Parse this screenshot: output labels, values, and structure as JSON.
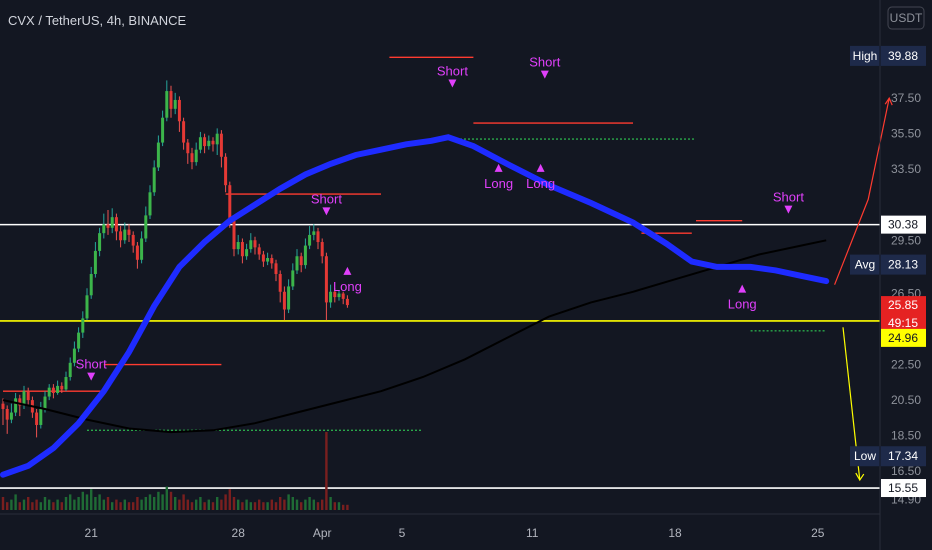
{
  "header": {
    "title": "CVX / TetherUS, 4h, BINANCE",
    "currency_label": "USDT"
  },
  "chart_data": {
    "type": "candlestick",
    "symbol": "CVX / TetherUS",
    "interval": "4h",
    "exchange": "BINANCE",
    "x_ticks": [
      "21",
      "28",
      "Apr",
      "5",
      "11",
      "18",
      "25"
    ],
    "y_ticks": [
      37.5,
      35.5,
      33.5,
      29.5,
      26.5,
      22.5,
      20.5,
      18.5,
      16.5,
      14.9
    ],
    "y_tick_labels": [
      "37.50",
      "35.50",
      "33.50",
      "29.50",
      "26.50",
      "22.50",
      "20.50",
      "18.50",
      "16.50",
      "14.90"
    ],
    "ylim": [
      14.2,
      41.0
    ],
    "candles": [
      [
        20.3,
        20.0,
        20.6,
        19.1
      ],
      [
        20.0,
        19.4,
        20.2,
        18.6
      ],
      [
        19.4,
        19.8,
        20.3,
        19.2
      ],
      [
        19.8,
        20.6,
        20.9,
        19.6
      ],
      [
        20.6,
        20.2,
        20.8,
        19.6
      ],
      [
        20.2,
        21.0,
        21.3,
        20.0
      ],
      [
        21.0,
        20.5,
        21.2,
        20.2
      ],
      [
        20.5,
        19.8,
        20.7,
        19.5
      ],
      [
        19.8,
        19.1,
        20.0,
        18.4
      ],
      [
        19.1,
        20.0,
        20.4,
        18.9
      ],
      [
        20.0,
        20.7,
        21.0,
        19.8
      ],
      [
        20.7,
        21.2,
        21.4,
        20.5
      ],
      [
        21.2,
        20.9,
        21.4,
        20.6
      ],
      [
        20.9,
        21.3,
        21.6,
        20.8
      ],
      [
        21.3,
        21.1,
        21.5,
        20.9
      ],
      [
        21.1,
        21.8,
        22.1,
        21.0
      ],
      [
        21.8,
        22.6,
        22.9,
        21.6
      ],
      [
        22.6,
        23.4,
        23.8,
        22.4
      ],
      [
        23.4,
        24.3,
        24.6,
        23.2
      ],
      [
        24.3,
        25.1,
        25.5,
        24.0
      ],
      [
        25.1,
        26.4,
        26.8,
        25.0
      ],
      [
        26.4,
        27.6,
        28.0,
        26.2
      ],
      [
        27.6,
        28.9,
        29.4,
        27.4
      ],
      [
        28.9,
        29.9,
        30.2,
        28.6
      ],
      [
        29.9,
        30.4,
        31.0,
        29.6
      ],
      [
        30.4,
        30.2,
        31.2,
        29.8
      ],
      [
        30.2,
        30.8,
        31.3,
        29.9
      ],
      [
        30.8,
        30.0,
        31.0,
        29.5
      ],
      [
        30.0,
        29.5,
        30.3,
        29.1
      ],
      [
        29.5,
        30.1,
        30.5,
        29.3
      ],
      [
        30.1,
        29.8,
        30.4,
        29.4
      ],
      [
        29.8,
        29.2,
        30.0,
        28.8
      ],
      [
        29.2,
        28.4,
        29.4,
        27.9
      ],
      [
        28.4,
        29.6,
        30.0,
        28.2
      ],
      [
        29.6,
        30.9,
        31.4,
        29.4
      ],
      [
        30.9,
        32.2,
        32.6,
        30.7
      ],
      [
        32.2,
        33.6,
        34.0,
        32.0
      ],
      [
        33.6,
        35.0,
        35.4,
        33.4
      ],
      [
        35.0,
        36.4,
        36.8,
        34.8
      ],
      [
        36.4,
        37.9,
        38.5,
        36.2
      ],
      [
        37.9,
        36.9,
        38.2,
        36.4
      ],
      [
        36.9,
        37.4,
        37.8,
        36.6
      ],
      [
        37.4,
        36.2,
        37.6,
        35.6
      ],
      [
        36.2,
        35.0,
        36.4,
        34.6
      ],
      [
        35.0,
        34.4,
        35.2,
        33.8
      ],
      [
        34.4,
        33.9,
        34.7,
        33.5
      ],
      [
        33.9,
        34.6,
        35.0,
        33.7
      ],
      [
        34.6,
        35.3,
        35.6,
        34.4
      ],
      [
        35.3,
        34.8,
        35.5,
        34.4
      ],
      [
        34.8,
        35.1,
        35.4,
        34.6
      ],
      [
        35.1,
        34.9,
        35.3,
        34.5
      ],
      [
        34.9,
        35.5,
        35.8,
        34.3
      ],
      [
        35.5,
        34.2,
        35.7,
        33.6
      ],
      [
        34.2,
        32.6,
        34.4,
        32.2
      ],
      [
        32.6,
        30.6,
        32.8,
        30.2
      ],
      [
        30.6,
        29.0,
        30.8,
        28.6
      ],
      [
        29.0,
        29.4,
        29.8,
        28.7
      ],
      [
        29.4,
        28.6,
        29.6,
        28.2
      ],
      [
        28.6,
        29.0,
        29.3,
        28.4
      ],
      [
        29.0,
        29.5,
        29.9,
        28.8
      ],
      [
        29.5,
        29.1,
        29.7,
        28.7
      ],
      [
        29.1,
        28.7,
        29.3,
        28.4
      ],
      [
        28.7,
        28.3,
        28.9,
        28.0
      ],
      [
        28.3,
        28.5,
        28.8,
        28.1
      ],
      [
        28.5,
        28.2,
        28.7,
        27.9
      ],
      [
        28.2,
        27.6,
        28.4,
        27.2
      ],
      [
        27.6,
        26.6,
        27.8,
        26.0
      ],
      [
        26.6,
        25.6,
        26.9,
        25.0
      ],
      [
        25.6,
        26.9,
        27.3,
        25.4
      ],
      [
        26.9,
        27.8,
        28.2,
        26.7
      ],
      [
        27.8,
        28.6,
        29.0,
        27.6
      ],
      [
        28.6,
        28.1,
        28.8,
        27.7
      ],
      [
        28.1,
        29.2,
        29.6,
        27.9
      ],
      [
        29.2,
        29.8,
        30.3,
        29.0
      ],
      [
        29.8,
        30.0,
        30.4,
        29.5
      ],
      [
        30.0,
        29.4,
        30.2,
        29.0
      ],
      [
        29.4,
        28.6,
        29.6,
        28.2
      ],
      [
        28.6,
        26.0,
        28.8,
        25.0
      ],
      [
        26.0,
        26.6,
        27.0,
        25.7
      ],
      [
        26.6,
        26.3,
        26.8,
        26.0
      ],
      [
        26.3,
        26.5,
        26.7,
        26.1
      ],
      [
        26.5,
        26.2,
        26.6,
        25.9
      ],
      [
        26.2,
        25.85,
        26.4,
        25.7
      ]
    ],
    "volume": [
      5,
      3,
      4,
      6,
      3,
      4,
      5,
      3,
      4,
      3,
      5,
      4,
      3,
      4,
      3,
      5,
      6,
      4,
      5,
      7,
      6,
      8,
      5,
      6,
      4,
      5,
      3,
      4,
      3,
      4,
      3,
      3,
      5,
      4,
      5,
      6,
      5,
      7,
      6,
      9,
      7,
      5,
      4,
      6,
      4,
      3,
      4,
      5,
      3,
      4,
      3,
      5,
      4,
      6,
      8,
      5,
      4,
      3,
      4,
      3,
      3,
      4,
      3,
      3,
      4,
      3,
      5,
      4,
      6,
      5,
      4,
      3,
      4,
      5,
      4,
      3,
      4,
      30,
      5,
      3,
      3,
      2,
      2
    ],
    "ema_fast": [
      [
        0,
        16.3
      ],
      [
        6,
        16.8
      ],
      [
        12,
        17.8
      ],
      [
        18,
        19.2
      ],
      [
        24,
        21.0
      ],
      [
        30,
        23.2
      ],
      [
        36,
        25.8
      ],
      [
        42,
        28.0
      ],
      [
        48,
        29.4
      ],
      [
        54,
        30.6
      ],
      [
        60,
        31.5
      ],
      [
        66,
        32.4
      ],
      [
        72,
        33.2
      ],
      [
        78,
        33.8
      ],
      [
        84,
        34.3
      ],
      [
        90,
        34.6
      ],
      [
        96,
        34.9
      ],
      [
        102,
        35.1
      ],
      [
        106,
        35.3
      ],
      [
        112,
        34.8
      ],
      [
        120,
        33.8
      ],
      [
        130,
        32.6
      ],
      [
        140,
        31.6
      ],
      [
        150,
        30.5
      ],
      [
        158,
        29.3
      ],
      [
        164,
        28.3
      ],
      [
        170,
        28.0
      ],
      [
        178,
        28.0
      ],
      [
        184,
        27.8
      ],
      [
        190,
        27.5
      ],
      [
        196,
        27.2
      ]
    ],
    "sma_slow": [
      [
        0,
        20.5
      ],
      [
        10,
        20.0
      ],
      [
        20,
        19.4
      ],
      [
        30,
        18.9
      ],
      [
        40,
        18.7
      ],
      [
        50,
        18.8
      ],
      [
        60,
        19.2
      ],
      [
        70,
        19.8
      ],
      [
        80,
        20.4
      ],
      [
        90,
        21.0
      ],
      [
        100,
        21.8
      ],
      [
        110,
        22.8
      ],
      [
        120,
        24.0
      ],
      [
        130,
        25.2
      ],
      [
        140,
        26.0
      ],
      [
        150,
        26.6
      ],
      [
        160,
        27.3
      ],
      [
        170,
        28.0
      ],
      [
        180,
        28.7
      ],
      [
        190,
        29.2
      ],
      [
        196,
        29.5
      ]
    ],
    "levels": [
      {
        "price": 30.38,
        "color": "#ffffff",
        "label": "30.38"
      },
      {
        "price": 24.96,
        "color": "#ffff00",
        "label": "24.96"
      },
      {
        "price": 15.55,
        "color": "#ffffff",
        "label": "15.55"
      }
    ],
    "badges": [
      {
        "name": "High",
        "value": "39.88",
        "price": 39.88
      },
      {
        "name": "Avg",
        "value": "28.13",
        "price": 28.13
      },
      {
        "name": "Low",
        "value": "17.34",
        "price": 17.34
      }
    ],
    "current_price": "25.85",
    "countdown": "49:15",
    "projection_up": [
      [
        198,
        27.0
      ],
      [
        203,
        30.0
      ],
      [
        206,
        31.8
      ],
      [
        211,
        37.5
      ]
    ],
    "projection_down": [
      [
        200,
        24.6
      ],
      [
        204,
        16.0
      ]
    ],
    "signals": [
      {
        "label": "Short",
        "dir": "down",
        "x": 21,
        "price": 21.6
      },
      {
        "label": "Short",
        "dir": "down",
        "x": 77,
        "price": 30.9
      },
      {
        "label": "Long",
        "dir": "up",
        "x": 82,
        "price": 28.0
      },
      {
        "label": "Short",
        "dir": "down",
        "x": 107,
        "price": 38.1
      },
      {
        "label": "Short",
        "dir": "down",
        "x": 129,
        "price": 38.6
      },
      {
        "label": "Long",
        "dir": "up",
        "x": 118,
        "price": 33.8
      },
      {
        "label": "Long",
        "dir": "up",
        "x": 128,
        "price": 33.8
      },
      {
        "label": "Long",
        "dir": "up",
        "x": 176,
        "price": 27.0
      },
      {
        "label": "Short",
        "dir": "down",
        "x": 187,
        "price": 31.0
      }
    ]
  }
}
